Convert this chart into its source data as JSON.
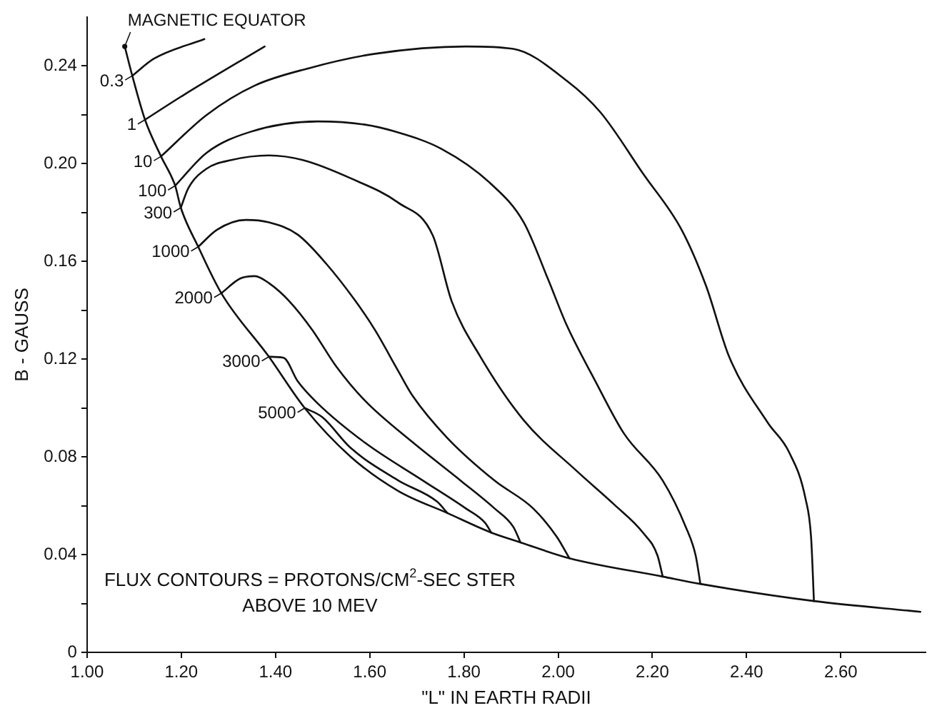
{
  "chart_data": {
    "type": "line",
    "xlabel": "\"L\" IN EARTH RADII",
    "ylabel": "B - GAUSS",
    "annotations": [
      {
        "text": "MAGNETIC EQUATOR",
        "x": 1.08,
        "y": 0.248
      },
      "FLUX CONTOURS = PROTONS/CM$^{2}$-SEC STER\nABOVE 10 MEV"
    ],
    "xlim": [
      1.0,
      2.78
    ],
    "ylim": [
      0,
      0.26
    ],
    "xticks": [
      {
        "value": 1,
        "label": "1.00"
      },
      {
        "value": 1.2,
        "label": "1.20"
      },
      {
        "value": 1.4,
        "label": "1.40"
      },
      {
        "value": 1.6,
        "label": "1.60"
      },
      {
        "value": 1.8,
        "label": "1.80"
      },
      {
        "value": 2,
        "label": "2.00"
      },
      {
        "value": 2.2,
        "label": "2.20"
      },
      {
        "value": 2.4,
        "label": "2.40"
      },
      {
        "value": 2.6,
        "label": "2.60"
      }
    ],
    "yticks": [
      0,
      {
        "value": 0.02,
        "label": null
      },
      0.04,
      {
        "value": 0.06,
        "label": null
      },
      0.08,
      {
        "value": 0.1,
        "label": null
      },
      0.12,
      {
        "value": 0.14,
        "label": null
      },
      0.16,
      {
        "value": 0.18,
        "label": null
      },
      {
        "value": 0.2,
        "label": "0.20"
      },
      {
        "value": 0.22,
        "label": null
      },
      0.24
    ],
    "grid": false,
    "legend": "left",
    "marker": "none",
    "line_style": "solid",
    "series": [
      {
        "color": "#111111",
        "x": [
          1.08,
          1.096,
          1.123,
          1.157,
          1.187,
          1.199,
          1.236,
          1.285,
          1.386,
          1.462,
          1.56,
          1.661,
          1.765,
          1.858,
          1.92,
          2.024,
          2.222,
          2.302,
          2.543,
          2.769
        ],
        "values": [
          0.248,
          0.236,
          0.218,
          0.203,
          0.191,
          0.182,
          0.166,
          0.147,
          0.121,
          0.1,
          0.08,
          0.066,
          0.057,
          0.049,
          0.045,
          0.0385,
          0.031,
          0.028,
          0.021,
          0.0166
        ]
      },
      {
        "name": "0.3",
        "color": "#111111",
        "x": [
          1.096,
          1.142,
          1.249
        ],
        "values": [
          0.236,
          0.243,
          0.251
        ]
      },
      {
        "name": "1",
        "color": "#111111",
        "x": [
          1.123,
          1.204,
          1.377
        ],
        "values": [
          0.218,
          0.228,
          0.248
        ]
      },
      {
        "name": "10",
        "color": "#111111",
        "x": [
          1.157,
          1.254,
          1.356,
          1.469,
          1.611,
          1.804,
          1.905,
          2.018,
          2.09,
          2.18,
          2.262,
          2.314,
          2.363,
          2.445,
          2.49,
          2.525,
          2.537,
          2.543
        ],
        "values": [
          0.203,
          0.22,
          0.232,
          0.239,
          0.245,
          0.248,
          0.247,
          0.234,
          0.221,
          0.196,
          0.173,
          0.15,
          0.121,
          0.094,
          0.082,
          0.063,
          0.047,
          0.021
        ]
      },
      {
        "name": "100",
        "color": "#111111",
        "x": [
          1.187,
          1.254,
          1.346,
          1.49,
          1.59,
          1.651,
          1.753,
          1.856,
          1.927,
          1.978,
          2.018,
          2.079,
          2.14,
          2.222,
          2.271,
          2.292,
          2.302
        ],
        "values": [
          0.191,
          0.2045,
          0.213,
          0.2173,
          0.216,
          0.2133,
          0.206,
          0.192,
          0.176,
          0.153,
          0.134,
          0.111,
          0.0895,
          0.0703,
          0.0513,
          0.0396,
          0.028
        ]
      },
      {
        "name": "300",
        "color": "#111111",
        "x": [
          1.199,
          1.215,
          1.254,
          1.306,
          1.386,
          1.458,
          1.56,
          1.661,
          1.734,
          1.774,
          1.835,
          1.927,
          2.039,
          2.119,
          2.18,
          2.211,
          2.222
        ],
        "values": [
          0.182,
          0.19,
          0.198,
          0.2015,
          0.2034,
          0.2015,
          0.194,
          0.184,
          0.1706,
          0.1437,
          0.121,
          0.095,
          0.0743,
          0.0605,
          0.049,
          0.0396,
          0.031
        ]
      },
      {
        "name": "1000",
        "color": "#111111",
        "x": [
          1.236,
          1.276,
          1.337,
          1.386,
          1.447,
          1.508,
          1.569,
          1.611,
          1.661,
          1.691,
          1.765,
          1.865,
          1.947,
          1.997,
          2.024
        ],
        "values": [
          0.166,
          0.173,
          0.177,
          0.176,
          0.171,
          0.159,
          0.144,
          0.132,
          0.115,
          0.105,
          0.0877,
          0.0703,
          0.0589,
          0.0473,
          0.0385
        ]
      },
      {
        "name": "2000",
        "color": "#111111",
        "x": [
          1.285,
          1.325,
          1.356,
          1.387,
          1.428,
          1.478,
          1.529,
          1.59,
          1.691,
          1.795,
          1.865,
          1.905,
          1.92
        ],
        "values": [
          0.147,
          0.153,
          0.154,
          0.151,
          0.144,
          0.132,
          0.117,
          0.103,
          0.086,
          0.07,
          0.0589,
          0.0513,
          0.045
        ]
      },
      {
        "name": "3000",
        "color": "#111111",
        "x": [
          1.386,
          1.417,
          1.447,
          1.489,
          1.59,
          1.713,
          1.804,
          1.845,
          1.858
        ],
        "values": [
          0.121,
          0.1206,
          0.111,
          0.102,
          0.0858,
          0.0703,
          0.0589,
          0.053,
          0.049
        ]
      },
      {
        "name": "5000",
        "color": "#111111",
        "x": [
          1.462,
          1.499,
          1.56,
          1.661,
          1.743,
          1.765
        ],
        "values": [
          0.1,
          0.0963,
          0.0836,
          0.0703,
          0.0617,
          0.057
        ]
      }
    ]
  }
}
